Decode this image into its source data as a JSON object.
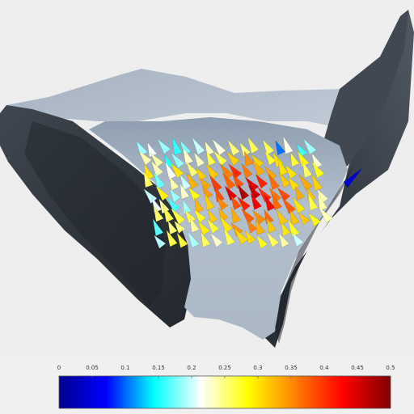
{
  "colorbar": {
    "ticks": [
      "0",
      "0.05",
      "0.1",
      "0.15",
      "0.2",
      "0.25",
      "0.3",
      "0.35",
      "0.4",
      "0.45",
      "0.5"
    ],
    "range": [
      0,
      0.5
    ],
    "colormap": [
      "#00008f",
      "#0000ff",
      "#00ffff",
      "#ffffff",
      "#ffff00",
      "#ff7f00",
      "#ff0000",
      "#7f0000"
    ]
  },
  "colors": {
    "background": "#f0f0f0",
    "rock_dark": "#2b3038",
    "rock_mid": "#4a525e",
    "ice": "#a9b7c6",
    "snow": "#c9d3de"
  }
}
